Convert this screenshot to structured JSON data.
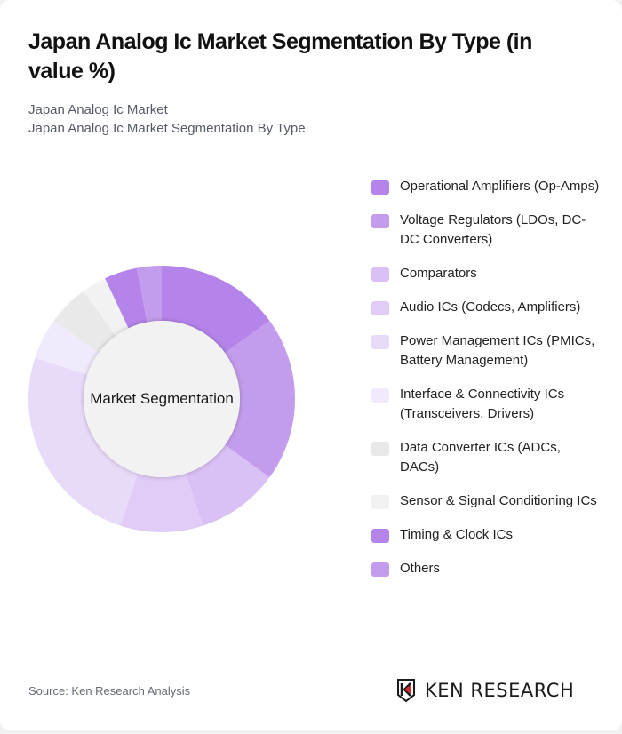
{
  "header": {
    "title": "Japan Analog Ic Market Segmentation By Type (in value %)",
    "subtitle_line1": "Japan Analog Ic Market",
    "subtitle_line2": "Japan Analog Ic Market Segmentation By Type"
  },
  "chart": {
    "center_label": "Market Segmentation"
  },
  "legend": [
    {
      "label": "Operational Amplifiers (Op-Amps)",
      "color": "#b584ea"
    },
    {
      "label": "Voltage Regulators (LDOs, DC-DC Converters)",
      "color": "#c49ced"
    },
    {
      "label": "Comparators",
      "color": "#d9c0f5"
    },
    {
      "label": "Audio ICs (Codecs, Amplifiers)",
      "color": "#e0ccf7"
    },
    {
      "label": "Power Management ICs (PMICs, Battery Management)",
      "color": "#e8daf9"
    },
    {
      "label": "Interface & Connectivity ICs (Transceivers, Drivers)",
      "color": "#f1eafc"
    },
    {
      "label": "Data Converter ICs (ADCs, DACs)",
      "color": "#e9e9e9"
    },
    {
      "label": "Sensor & Signal Conditioning ICs",
      "color": "#f2f2f2"
    },
    {
      "label": "Timing & Clock ICs",
      "color": "#b584ea"
    },
    {
      "label": "Others",
      "color": "#c49ced"
    }
  ],
  "footer": {
    "source": "Source: Ken Research Analysis",
    "logo_text": "KEN RESEARCH"
  },
  "chart_data": {
    "type": "pie",
    "variant": "donut",
    "title": "Japan Analog Ic Market Segmentation By Type (in value %)",
    "subtitle": "Japan Analog Ic Market Segmentation By Type",
    "center_label": "Market Segmentation",
    "categories": [
      "Operational Amplifiers (Op-Amps)",
      "Voltage Regulators (LDOs, DC-DC Converters)",
      "Comparators",
      "Audio ICs (Codecs, Amplifiers)",
      "Power Management ICs (PMICs, Battery Management)",
      "Interface & Connectivity ICs (Transceivers, Drivers)",
      "Data Converter ICs (ADCs, DACs)",
      "Sensor & Signal Conditioning ICs",
      "Timing & Clock ICs",
      "Others"
    ],
    "values": [
      15,
      20,
      10,
      10,
      25,
      5,
      5,
      3,
      4,
      3
    ],
    "colors": [
      "#b584ea",
      "#c49ced",
      "#d9c0f5",
      "#e0ccf7",
      "#e8daf9",
      "#f1eafc",
      "#e9e9e9",
      "#f2f2f2",
      "#b584ea",
      "#c49ced"
    ],
    "start_angle": "top, clockwise",
    "legend_position": "right",
    "source": "Source: Ken Research Analysis"
  }
}
